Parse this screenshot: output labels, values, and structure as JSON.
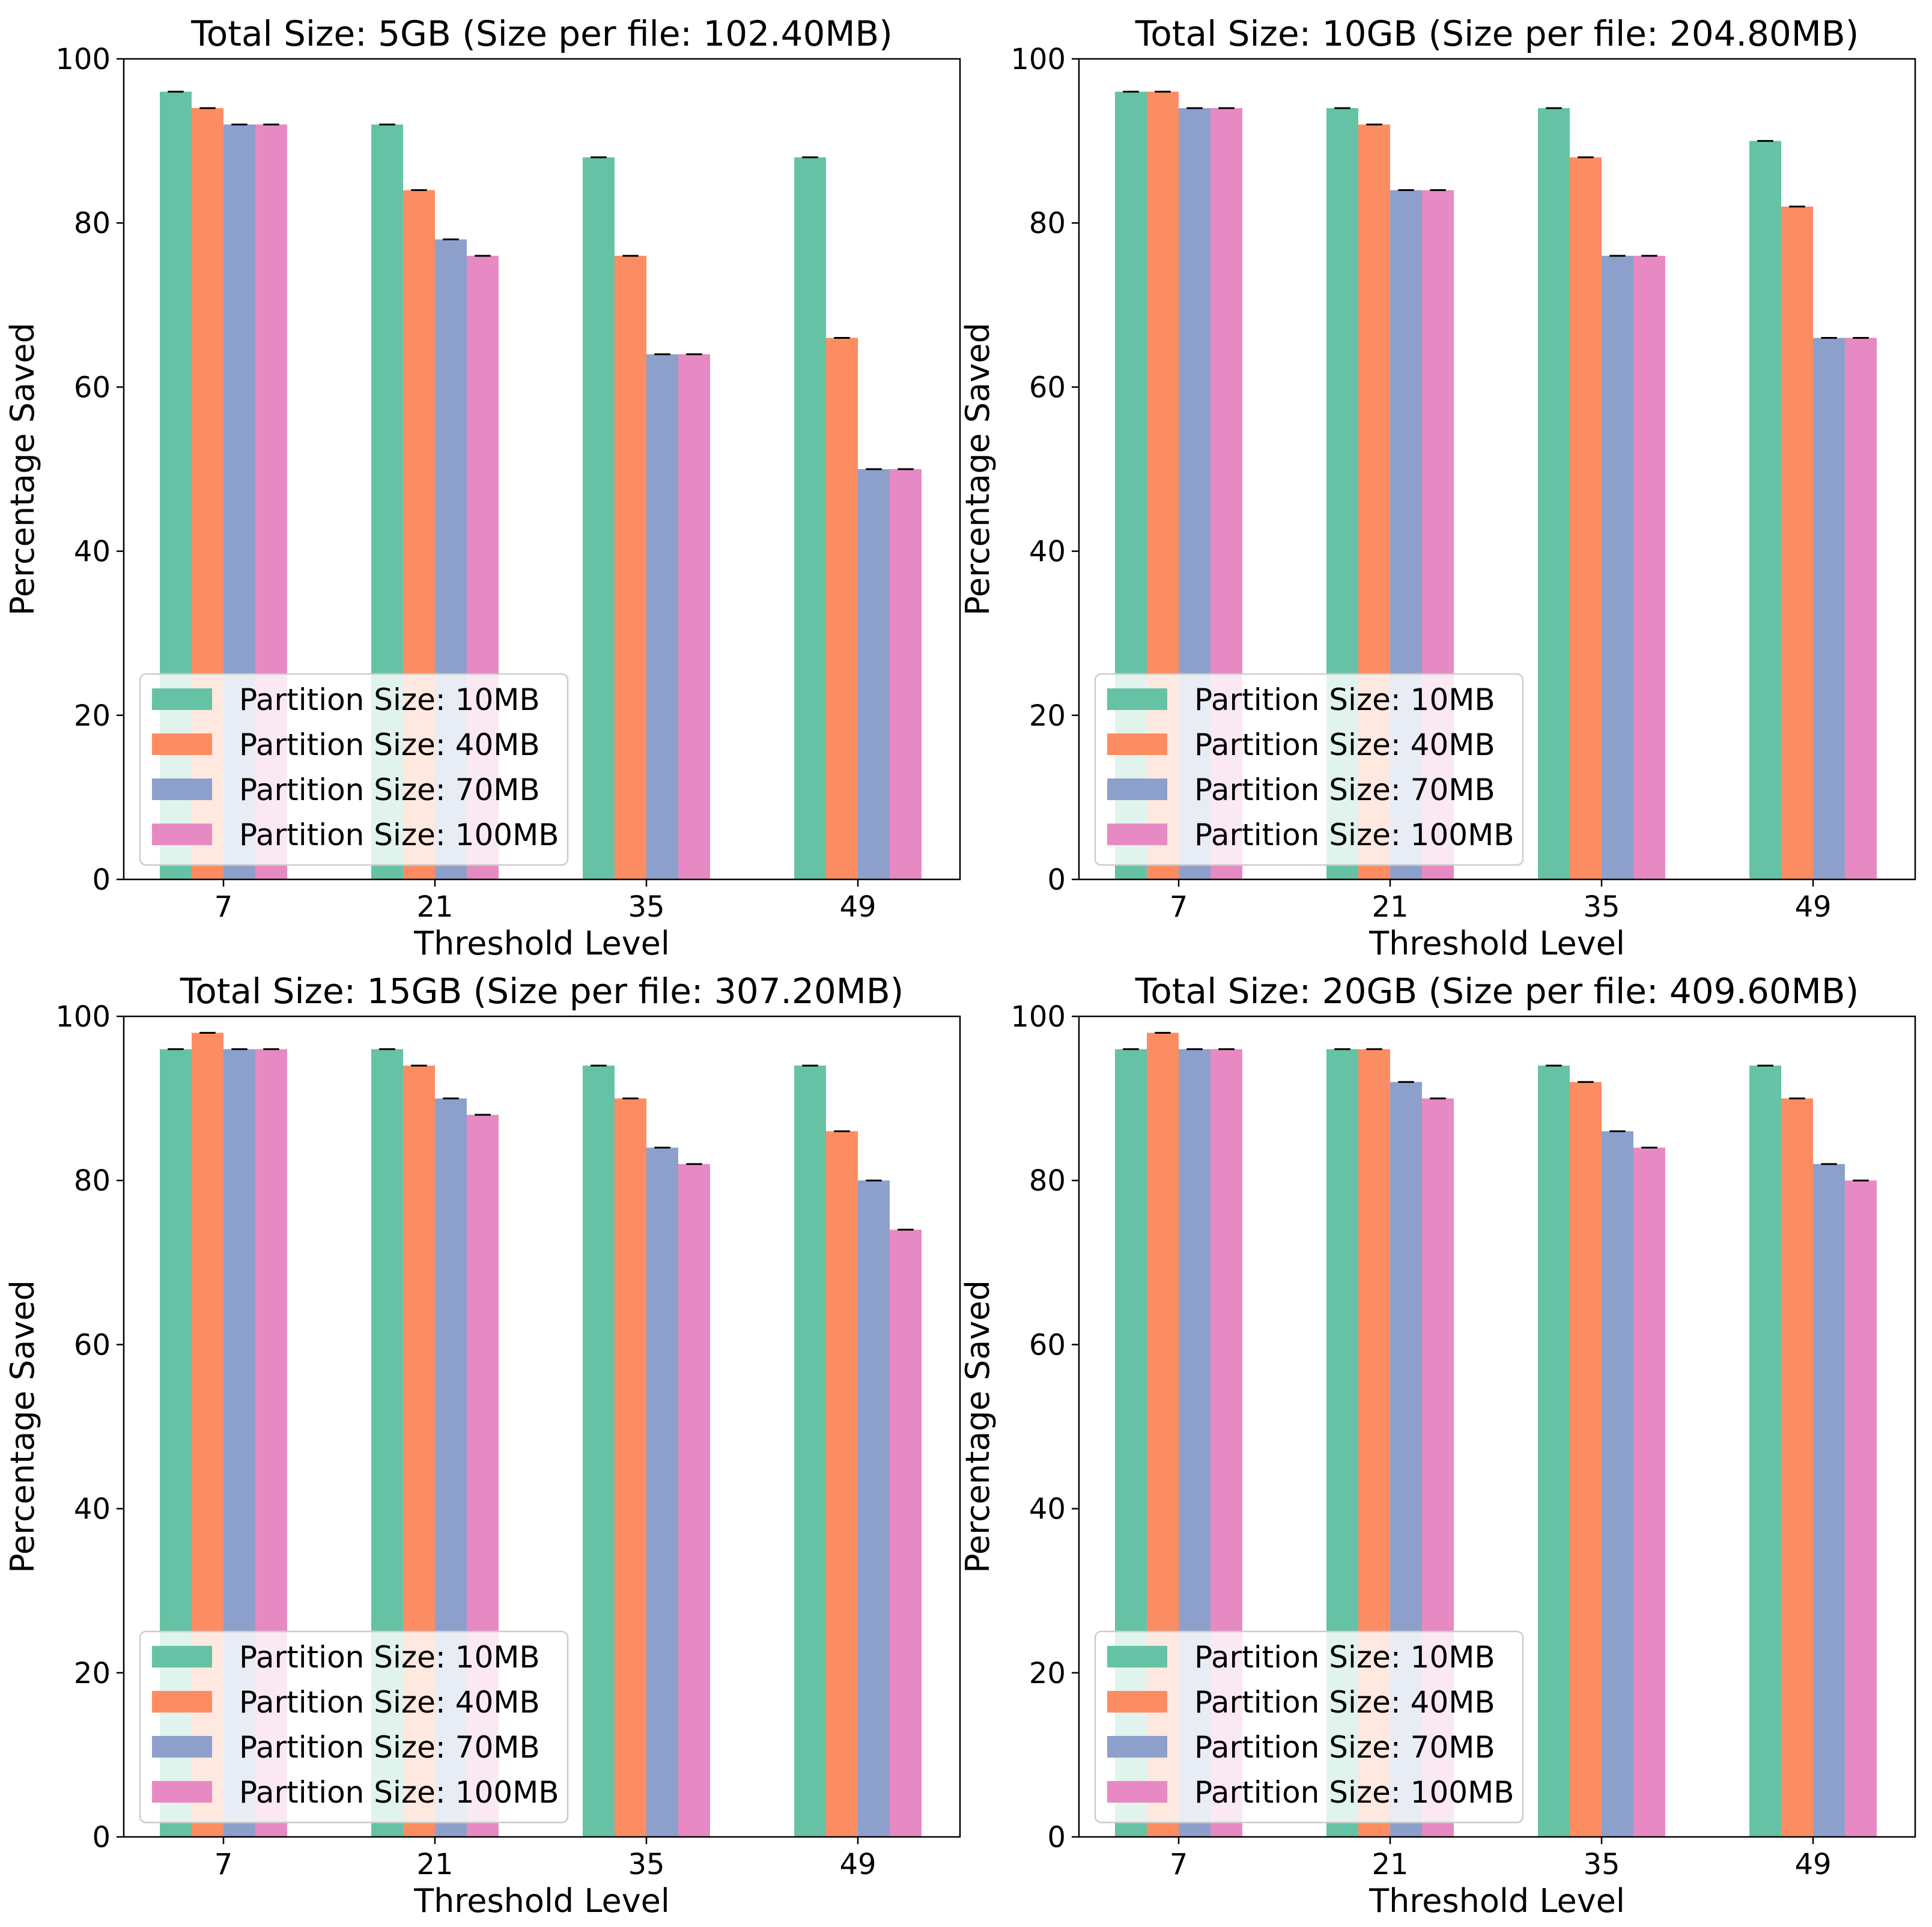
{
  "figure": {
    "series_names": [
      "Partition Size: 10MB",
      "Partition Size: 40MB",
      "Partition Size: 70MB",
      "Partition Size: 100MB"
    ],
    "colors": [
      "#66c2a5",
      "#fc8d62",
      "#8da0cb",
      "#e78ac3"
    ]
  },
  "chart_data": [
    {
      "type": "bar",
      "title": "Total Size: 5GB (Size per file: 102.40MB)",
      "xlabel": "Threshold Level",
      "ylabel": "Percentage Saved",
      "categories": [
        "7",
        "21",
        "35",
        "49"
      ],
      "ylim": [
        0,
        100
      ],
      "yticks": [
        0,
        20,
        40,
        60,
        80,
        100
      ],
      "legend": "lower-left",
      "series": [
        {
          "name": "Partition Size: 10MB",
          "values": [
            96,
            92,
            88,
            88
          ]
        },
        {
          "name": "Partition Size: 40MB",
          "values": [
            94,
            84,
            76,
            66
          ]
        },
        {
          "name": "Partition Size: 70MB",
          "values": [
            92,
            78,
            64,
            50
          ]
        },
        {
          "name": "Partition Size: 100MB",
          "values": [
            92,
            76,
            64,
            50
          ]
        }
      ]
    },
    {
      "type": "bar",
      "title": "Total Size: 10GB (Size per file: 204.80MB)",
      "xlabel": "Threshold Level",
      "ylabel": "Percentage Saved",
      "categories": [
        "7",
        "21",
        "35",
        "49"
      ],
      "ylim": [
        0,
        100
      ],
      "yticks": [
        0,
        20,
        40,
        60,
        80,
        100
      ],
      "legend": "lower-left",
      "series": [
        {
          "name": "Partition Size: 10MB",
          "values": [
            96,
            94,
            94,
            90
          ]
        },
        {
          "name": "Partition Size: 40MB",
          "values": [
            96,
            92,
            88,
            82
          ]
        },
        {
          "name": "Partition Size: 70MB",
          "values": [
            94,
            84,
            76,
            66
          ]
        },
        {
          "name": "Partition Size: 100MB",
          "values": [
            94,
            84,
            76,
            66
          ]
        }
      ]
    },
    {
      "type": "bar",
      "title": "Total Size: 15GB (Size per file: 307.20MB)",
      "xlabel": "Threshold Level",
      "ylabel": "Percentage Saved",
      "categories": [
        "7",
        "21",
        "35",
        "49"
      ],
      "ylim": [
        0,
        100
      ],
      "yticks": [
        0,
        20,
        40,
        60,
        80,
        100
      ],
      "legend": "lower-left",
      "series": [
        {
          "name": "Partition Size: 10MB",
          "values": [
            96,
            96,
            94,
            94
          ]
        },
        {
          "name": "Partition Size: 40MB",
          "values": [
            98,
            94,
            90,
            86
          ]
        },
        {
          "name": "Partition Size: 70MB",
          "values": [
            96,
            90,
            84,
            80
          ]
        },
        {
          "name": "Partition Size: 100MB",
          "values": [
            96,
            88,
            82,
            74
          ]
        }
      ]
    },
    {
      "type": "bar",
      "title": "Total Size: 20GB (Size per file: 409.60MB)",
      "xlabel": "Threshold Level",
      "ylabel": "Percentage Saved",
      "categories": [
        "7",
        "21",
        "35",
        "49"
      ],
      "ylim": [
        0,
        100
      ],
      "yticks": [
        0,
        20,
        40,
        60,
        80,
        100
      ],
      "legend": "lower-left",
      "series": [
        {
          "name": "Partition Size: 10MB",
          "values": [
            96,
            96,
            94,
            94
          ]
        },
        {
          "name": "Partition Size: 40MB",
          "values": [
            98,
            96,
            92,
            90
          ]
        },
        {
          "name": "Partition Size: 70MB",
          "values": [
            96,
            92,
            86,
            82
          ]
        },
        {
          "name": "Partition Size: 100MB",
          "values": [
            96,
            90,
            84,
            80
          ]
        }
      ]
    }
  ]
}
